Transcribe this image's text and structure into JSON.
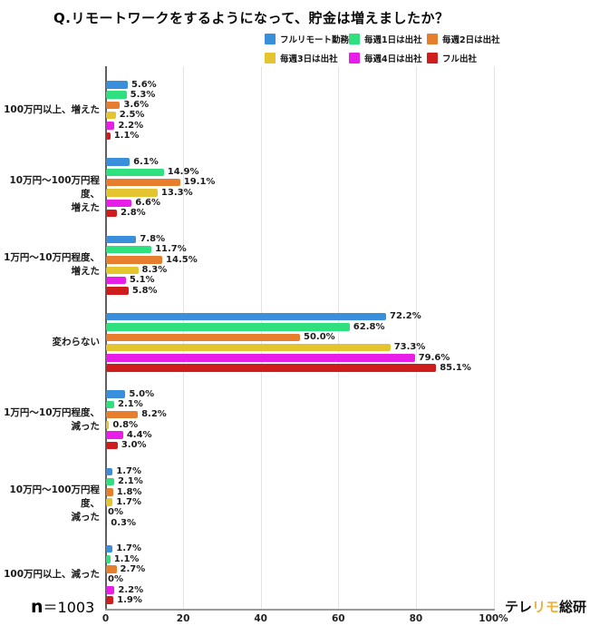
{
  "title": "Q.リモートワークをするようになって、貯金は増えましたか？",
  "sample": {
    "n": "n",
    "value": "＝1003"
  },
  "logo": {
    "part1": "テレ",
    "part2": "リモ",
    "part3": "総研",
    "accent_color": "#eab23c"
  },
  "chart_data": {
    "type": "bar",
    "orientation": "horizontal",
    "title": "Q.リモートワークをするようになって、貯金は増えましたか？",
    "xlabel": "",
    "ylabel": "",
    "xlim": [
      0,
      100
    ],
    "grid": true,
    "legend_position": "top",
    "categories": [
      "100万円以上、増えた",
      "10万円～100万円程度、増えた",
      "1万円～10万円程度、増えた",
      "変わらない",
      "1万円～10万円程度、減った",
      "10万円～100万円程度、減った",
      "100万円以上、減った"
    ],
    "category_display_lines": [
      [
        "100万円以上、増えた"
      ],
      [
        "10万円～100万円程度、",
        "増えた"
      ],
      [
        "1万円～10万円程度、",
        "増えた"
      ],
      [
        "変わらない"
      ],
      [
        "1万円～10万円程度、",
        "減った"
      ],
      [
        "10万円～100万円程度、",
        "減った"
      ],
      [
        "100万円以上、減った"
      ]
    ],
    "series": [
      {
        "name": "フルリモート勤務",
        "color": "#3a8fdc",
        "values": [
          5.6,
          6.1,
          7.8,
          72.2,
          5.0,
          1.7,
          1.7
        ],
        "labels": [
          "5.6%",
          "6.1%",
          "7.8%",
          "72.2%",
          "5.0%",
          "1.7%",
          "1.7%"
        ]
      },
      {
        "name": "毎週1日は出社",
        "color": "#2ee07e",
        "values": [
          5.3,
          14.9,
          11.7,
          62.8,
          2.1,
          2.1,
          1.1
        ],
        "labels": [
          "5.3%",
          "14.9%",
          "11.7%",
          "62.8%",
          "2.1%",
          "2.1%",
          "1.1%"
        ]
      },
      {
        "name": "毎週2日は出社",
        "color": "#e77e2e",
        "values": [
          3.6,
          19.1,
          14.5,
          50.0,
          8.2,
          1.8,
          2.7
        ],
        "labels": [
          "3.6%",
          "19.1%",
          "14.5%",
          "50.0%",
          "8.2%",
          "1.8%",
          "2.7%"
        ]
      },
      {
        "name": "毎週3日は出社",
        "color": "#e4c52f",
        "values": [
          2.5,
          13.3,
          8.3,
          73.3,
          0.8,
          1.7,
          0
        ],
        "labels": [
          "2.5%",
          "13.3%",
          "8.3%",
          "73.3%",
          "0.8%",
          "1.7%",
          "0%"
        ]
      },
      {
        "name": "毎週4日は出社",
        "color": "#e81ee8",
        "values": [
          2.2,
          6.6,
          5.1,
          79.6,
          4.4,
          0,
          2.2
        ],
        "labels": [
          "2.2%",
          "6.6%",
          "5.1%",
          "79.6%",
          "4.4%",
          "0%",
          "2.2%"
        ]
      },
      {
        "name": "フル出社",
        "color": "#cf1d1d",
        "values": [
          1.1,
          2.8,
          5.8,
          85.1,
          3.0,
          0.3,
          1.9
        ],
        "labels": [
          "1.1%",
          "2.8%",
          "5.8%",
          "85.1%",
          "3.0%",
          "0.3%",
          "1.9%"
        ]
      }
    ],
    "x_ticks": [
      {
        "value": 0,
        "label": "0"
      },
      {
        "value": 20,
        "label": "20"
      },
      {
        "value": 40,
        "label": "40"
      },
      {
        "value": 60,
        "label": "60"
      },
      {
        "value": 80,
        "label": "80"
      },
      {
        "value": 100,
        "label": "100%"
      }
    ]
  }
}
